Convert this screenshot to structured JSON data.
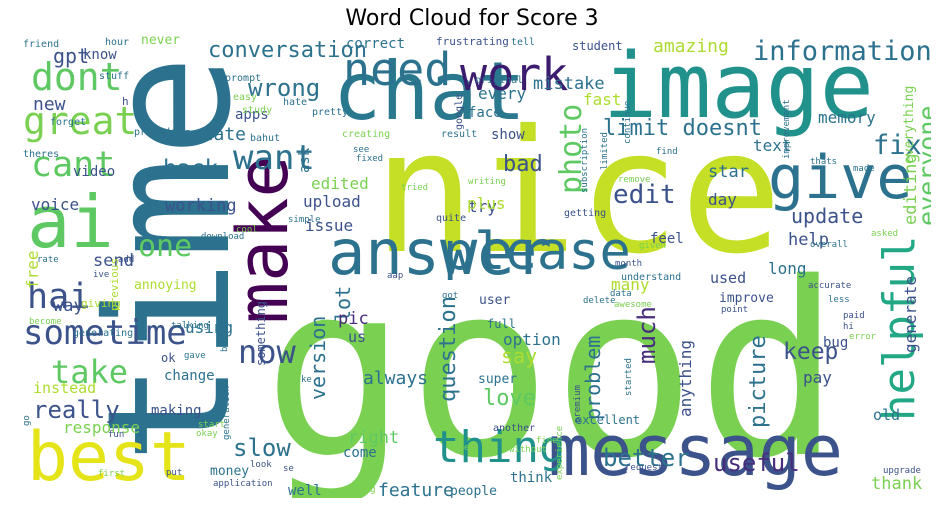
{
  "title": "Word Cloud for Score 3",
  "palette": {
    "yellow": "#d8e219",
    "lime": "#7ad151",
    "green": "#5ec962",
    "teal": "#21918c",
    "blue": "#3b528b",
    "navy": "#2c728e",
    "purple": "#440154",
    "dpurple": "#472d7b",
    "seafoam": "#22a884",
    "cyan": "#1f9e89",
    "lyellow": "#addc30"
  },
  "words": [
    {
      "text": "good",
      "color": "#7ad151"
    },
    {
      "text": "nice",
      "color": "#c4df25"
    },
    {
      "text": "time",
      "color": "#2c728e"
    },
    {
      "text": "image",
      "color": "#21918c"
    },
    {
      "text": "chat",
      "color": "#2a788e"
    },
    {
      "text": "message",
      "color": "#3b528b"
    },
    {
      "text": "make",
      "color": "#440154"
    },
    {
      "text": "answer",
      "color": "#2c728e"
    },
    {
      "text": "ai",
      "color": "#5ec962"
    },
    {
      "text": "best",
      "color": "#e5e419"
    },
    {
      "text": "give",
      "color": "#2c728e"
    },
    {
      "text": "please",
      "color": "#2c728e"
    },
    {
      "text": "work",
      "color": "#3b1c6e"
    },
    {
      "text": "need",
      "color": "#2c728e"
    },
    {
      "text": "dont",
      "color": "#5ec962"
    },
    {
      "text": "great",
      "color": "#7ad151"
    },
    {
      "text": "thing",
      "color": "#21918c"
    },
    {
      "text": "helpful",
      "color": "#22a884"
    },
    {
      "text": "cant",
      "color": "#5ec962"
    },
    {
      "text": "hai",
      "color": "#3b528b"
    },
    {
      "text": "sometime",
      "color": "#3b528b"
    },
    {
      "text": "take",
      "color": "#5ec962"
    },
    {
      "text": "want",
      "color": "#2c728e"
    },
    {
      "text": "information",
      "color": "#2c728e"
    },
    {
      "text": "one",
      "color": "#5ec962"
    },
    {
      "text": "photo",
      "color": "#5ec962"
    },
    {
      "text": "now",
      "color": "#3b528b"
    },
    {
      "text": "edit",
      "color": "#3b528b"
    },
    {
      "text": "fix",
      "color": "#2c728e"
    },
    {
      "text": "everyone",
      "color": "#5ec962"
    },
    {
      "text": "wrong",
      "color": "#2c728e"
    },
    {
      "text": "conversation",
      "color": "#2c728e"
    },
    {
      "text": "limit doesnt",
      "color": "#2c728e"
    },
    {
      "text": "back",
      "color": "#2c728e"
    },
    {
      "text": "really",
      "color": "#3b528b"
    },
    {
      "text": "love",
      "color": "#5ec962"
    },
    {
      "text": "better",
      "color": "#2c728e"
    },
    {
      "text": "useful",
      "color": "#472d7b"
    },
    {
      "text": "slow",
      "color": "#2c728e"
    },
    {
      "text": "much",
      "color": "#472d7b"
    },
    {
      "text": "keep",
      "color": "#3b528b"
    },
    {
      "text": "picture",
      "color": "#2c728e"
    },
    {
      "text": "question",
      "color": "#2c728e"
    },
    {
      "text": "bad",
      "color": "#3b528b"
    },
    {
      "text": "update",
      "color": "#3b528b"
    },
    {
      "text": "version",
      "color": "#2c728e"
    },
    {
      "text": "say",
      "color": "#addc30"
    },
    {
      "text": "feature",
      "color": "#2c728e"
    },
    {
      "text": "problem",
      "color": "#2c728e"
    },
    {
      "text": "thank",
      "color": "#7ad151"
    },
    {
      "text": "gpt",
      "color": "#3b528b"
    },
    {
      "text": "new",
      "color": "#3b528b"
    },
    {
      "text": "create",
      "color": "#2c728e"
    },
    {
      "text": "amazing",
      "color": "#addc30"
    },
    {
      "text": "always",
      "color": "#2c728e"
    },
    {
      "text": "working",
      "color": "#3b528b"
    },
    {
      "text": "right",
      "color": "#5ec962"
    },
    {
      "text": "help",
      "color": "#3b528b"
    },
    {
      "text": "lot",
      "color": "#2c728e"
    },
    {
      "text": "mistake",
      "color": "#2c728e"
    },
    {
      "text": "pic",
      "color": "#472d7b"
    },
    {
      "text": "text",
      "color": "#2c728e"
    },
    {
      "text": "generate",
      "color": "#3b528b"
    },
    {
      "text": "edited",
      "color": "#7ad151"
    },
    {
      "text": "upload",
      "color": "#3b528b"
    },
    {
      "text": "fast",
      "color": "#addc30"
    },
    {
      "text": "every",
      "color": "#2c728e"
    },
    {
      "text": "send",
      "color": "#3b528b"
    },
    {
      "text": "free",
      "color": "#addc30"
    },
    {
      "text": "way",
      "color": "#3b528b"
    },
    {
      "text": "star",
      "color": "#2c728e"
    },
    {
      "text": "editing",
      "color": "#7ad151"
    },
    {
      "text": "response",
      "color": "#7ad151"
    },
    {
      "text": "pay",
      "color": "#3b528b"
    },
    {
      "text": "old",
      "color": "#2c728e"
    },
    {
      "text": "anything",
      "color": "#3b528b"
    },
    {
      "text": "using",
      "color": "#2c728e"
    },
    {
      "text": "day",
      "color": "#3b528b"
    },
    {
      "text": "issue",
      "color": "#3b528b"
    },
    {
      "text": "try",
      "color": "#3b528b"
    },
    {
      "text": "option",
      "color": "#2c728e"
    },
    {
      "text": "long",
      "color": "#2c728e"
    },
    {
      "text": "used",
      "color": "#3b528b"
    },
    {
      "text": "voice",
      "color": "#3b528b"
    },
    {
      "text": "us",
      "color": "#3b528b"
    },
    {
      "text": "many",
      "color": "#addc30"
    },
    {
      "text": "plus",
      "color": "#addc30"
    },
    {
      "text": "memory",
      "color": "#2c728e"
    },
    {
      "text": "correct",
      "color": "#2c728e"
    },
    {
      "text": "apps",
      "color": "#3b528b"
    },
    {
      "text": "face",
      "color": "#2c728e"
    },
    {
      "text": "show",
      "color": "#3b528b"
    },
    {
      "text": "ask",
      "color": "#2c728e"
    },
    {
      "text": "video",
      "color": "#3b528b"
    },
    {
      "text": "know",
      "color": "#3b528b"
    },
    {
      "text": "never",
      "color": "#7ad151"
    },
    {
      "text": "everything",
      "color": "#7ad151"
    },
    {
      "text": "super",
      "color": "#2c728e"
    },
    {
      "text": "think",
      "color": "#2c728e"
    },
    {
      "text": "making",
      "color": "#3b528b"
    },
    {
      "text": "well",
      "color": "#2c728e"
    },
    {
      "text": "bug",
      "color": "#3b528b"
    },
    {
      "text": "instead",
      "color": "#addc30"
    },
    {
      "text": "full",
      "color": "#2c728e"
    },
    {
      "text": "come",
      "color": "#2c728e"
    },
    {
      "text": "something",
      "color": "#3b528b"
    },
    {
      "text": "excellent",
      "color": "#2c728e"
    },
    {
      "text": "ok",
      "color": "#3b528b"
    },
    {
      "text": "change",
      "color": "#2c728e"
    },
    {
      "text": "money",
      "color": "#2c728e"
    },
    {
      "text": "people",
      "color": "#2c728e"
    },
    {
      "text": "improve",
      "color": "#3b528b"
    },
    {
      "text": "feel",
      "color": "#3b528b"
    },
    {
      "text": "user",
      "color": "#3b528b"
    },
    {
      "text": "annoying",
      "color": "#addc30"
    },
    {
      "text": "previous",
      "color": "#addc30"
    },
    {
      "text": "giving",
      "color": "#addc30"
    },
    {
      "text": "student",
      "color": "#3b528b"
    },
    {
      "text": "original",
      "color": "#2c728e"
    },
    {
      "text": "google",
      "color": "#3b528b"
    },
    {
      "text": "stuff",
      "color": "#2c728e"
    },
    {
      "text": "friend",
      "color": "#2c728e"
    },
    {
      "text": "hour",
      "color": "#2c728e"
    },
    {
      "text": "frustrating",
      "color": "#3b528b"
    },
    {
      "text": "tell",
      "color": "#2c728e"
    },
    {
      "text": "prompt",
      "color": "#2c728e"
    },
    {
      "text": "study",
      "color": "#7ad151"
    },
    {
      "text": "easy",
      "color": "#7ad151"
    },
    {
      "text": "hate",
      "color": "#2c728e"
    },
    {
      "text": "pretty",
      "color": "#2c728e"
    },
    {
      "text": "forget",
      "color": "#2c728e"
    },
    {
      "text": "bahut",
      "color": "#2c728e"
    },
    {
      "text": "provide",
      "color": "#2c728e"
    },
    {
      "text": "creating",
      "color": "#7ad151"
    },
    {
      "text": "result",
      "color": "#2c728e"
    },
    {
      "text": "subscription",
      "color": "#2c728e"
    },
    {
      "text": "limited",
      "color": "#2c728e"
    },
    {
      "text": "continue",
      "color": "#2c728e"
    },
    {
      "text": "improvement",
      "color": "#2c728e"
    },
    {
      "text": "theres",
      "color": "#2c728e"
    },
    {
      "text": "see",
      "color": "#2c728e"
    },
    {
      "text": "fixed",
      "color": "#2c728e"
    },
    {
      "text": "find",
      "color": "#2c728e"
    },
    {
      "text": "thats",
      "color": "#2c728e"
    },
    {
      "text": "made",
      "color": "#2c728e"
    },
    {
      "text": "writing",
      "color": "#7ad151"
    },
    {
      "text": "tried",
      "color": "#7ad151"
    },
    {
      "text": "remove",
      "color": "#7ad151"
    },
    {
      "text": "simple",
      "color": "#2c728e"
    },
    {
      "text": "quite",
      "color": "#3b528b"
    },
    {
      "text": "getting",
      "color": "#3b528b"
    },
    {
      "text": "cool",
      "color": "#7ad151"
    },
    {
      "text": "download",
      "color": "#2c728e"
    },
    {
      "text": "rate",
      "color": "#2c728e"
    },
    {
      "text": "add",
      "color": "#3b528b"
    },
    {
      "text": "ive",
      "color": "#3b528b"
    },
    {
      "text": "given",
      "color": "#7ad151"
    },
    {
      "text": "overall",
      "color": "#2c728e"
    },
    {
      "text": "asked",
      "color": "#7ad151"
    },
    {
      "text": "month",
      "color": "#3b528b"
    },
    {
      "text": "accurate",
      "color": "#3b528b"
    },
    {
      "text": "aap",
      "color": "#3b528b"
    },
    {
      "text": "understand",
      "color": "#2c728e"
    },
    {
      "text": "less",
      "color": "#2c728e"
    },
    {
      "text": "delete",
      "color": "#2c728e"
    },
    {
      "text": "got",
      "color": "#2c728e"
    },
    {
      "text": "data",
      "color": "#2c728e"
    },
    {
      "text": "awesome",
      "color": "#7ad151"
    },
    {
      "text": "point",
      "color": "#3b528b"
    },
    {
      "text": "paid",
      "color": "#3b528b"
    },
    {
      "text": "hi",
      "color": "#3b528b"
    },
    {
      "text": "error",
      "color": "#7ad151"
    },
    {
      "text": "become",
      "color": "#7ad151"
    },
    {
      "text": "generating",
      "color": "#2c728e"
    },
    {
      "text": "talking",
      "color": "#2c728e"
    },
    {
      "text": "bhi",
      "color": "#2c728e"
    },
    {
      "text": "gave",
      "color": "#2c728e"
    },
    {
      "text": "ke",
      "color": "#2c728e"
    },
    {
      "text": "started",
      "color": "#2c728e"
    },
    {
      "text": "premium",
      "color": "#3b528b"
    },
    {
      "text": "go",
      "color": "#2c728e"
    },
    {
      "text": "start",
      "color": "#7ad151"
    },
    {
      "text": "generation",
      "color": "#2c728e"
    },
    {
      "text": "okay",
      "color": "#7ad151"
    },
    {
      "text": "fun",
      "color": "#3b528b"
    },
    {
      "text": "another",
      "color": "#3b528b"
    },
    {
      "text": "idea",
      "color": "#7ad151"
    },
    {
      "text": "fine",
      "color": "#7ad151"
    },
    {
      "text": "experience",
      "color": "#7ad151"
    },
    {
      "text": "without",
      "color": "#7ad151"
    },
    {
      "text": "first",
      "color": "#7ad151"
    },
    {
      "text": "put",
      "color": "#3b528b"
    },
    {
      "text": "application",
      "color": "#3b528b"
    },
    {
      "text": "look",
      "color": "#3b528b"
    },
    {
      "text": "se",
      "color": "#3b528b"
    },
    {
      "text": "taking",
      "color": "#7ad151"
    },
    {
      "text": "request",
      "color": "#3b528b"
    },
    {
      "text": "upgrade",
      "color": "#3b528b"
    },
    {
      "text": "h",
      "color": "#3b528b"
    }
  ]
}
